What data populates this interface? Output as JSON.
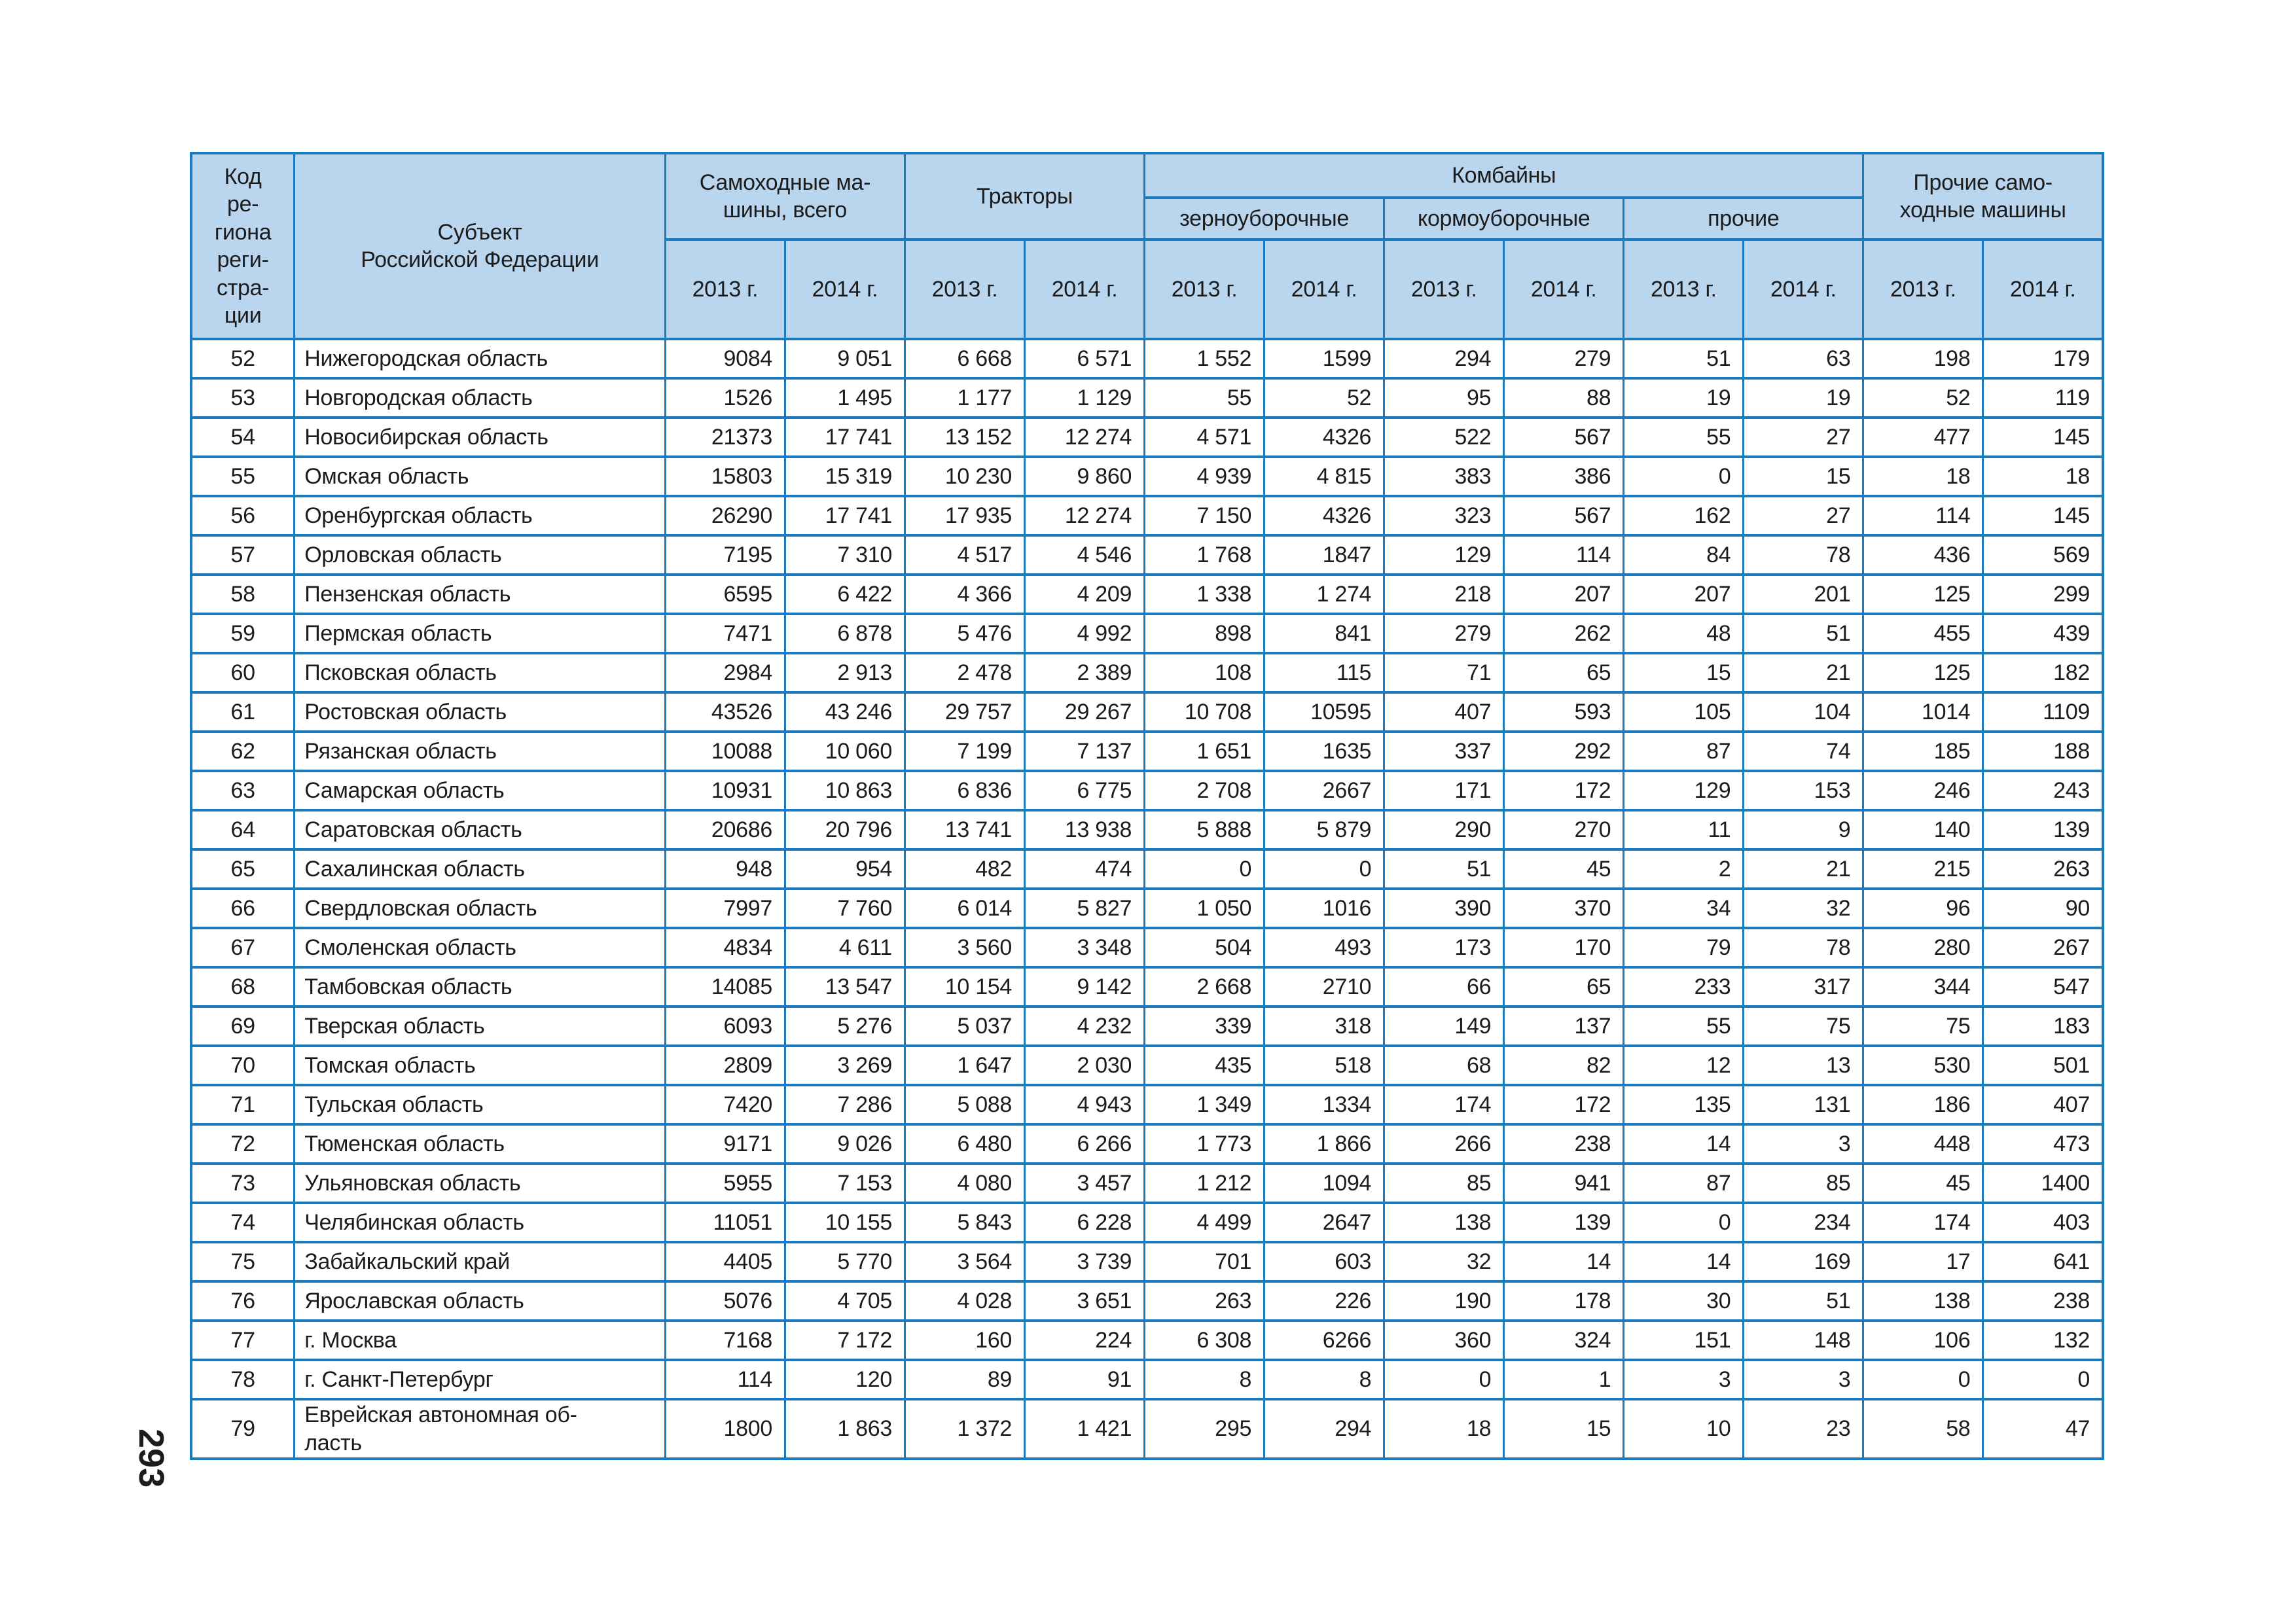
{
  "page": {
    "number": "293"
  },
  "colors": {
    "header_bg": "#b9d6ee",
    "border": "#1a7bbe",
    "text": "#1c1c1c"
  },
  "table": {
    "header": {
      "col_region_code": "Код\nре-\nгиона\nреги-\nстра-\nции",
      "col_subject": "Субъект\nРоссийской Федерации",
      "group_selfpropelled": "Самоходные ма-\nшины, всего",
      "group_tractors": "Тракторы",
      "group_combines": "Комбайны",
      "sub_grain": "зерноуборочные",
      "sub_forage": "кормоуборочные",
      "sub_other": "прочие",
      "group_other_selfpropelled": "Прочие само-\nходные машины",
      "year_2013": "2013 г.",
      "year_2014": "2014 г."
    },
    "rows": [
      {
        "code": "52",
        "name": "Нижегородская область",
        "values": [
          "9084",
          "9 051",
          "6 668",
          "6 571",
          "1 552",
          "1599",
          "294",
          "279",
          "51",
          "63",
          "198",
          "179"
        ]
      },
      {
        "code": "53",
        "name": "Новгородская область",
        "values": [
          "1526",
          "1 495",
          "1 177",
          "1 129",
          "55",
          "52",
          "95",
          "88",
          "19",
          "19",
          "52",
          "119"
        ]
      },
      {
        "code": "54",
        "name": "Новосибирская область",
        "values": [
          "21373",
          "17 741",
          "13 152",
          "12 274",
          "4 571",
          "4326",
          "522",
          "567",
          "55",
          "27",
          "477",
          "145"
        ]
      },
      {
        "code": "55",
        "name": "Омская область",
        "values": [
          "15803",
          "15 319",
          "10 230",
          "9 860",
          "4 939",
          "4 815",
          "383",
          "386",
          "0",
          "15",
          "18",
          "18"
        ]
      },
      {
        "code": "56",
        "name": "Оренбургская область",
        "values": [
          "26290",
          "17 741",
          "17 935",
          "12 274",
          "7 150",
          "4326",
          "323",
          "567",
          "162",
          "27",
          "114",
          "145"
        ]
      },
      {
        "code": "57",
        "name": "Орловская область",
        "values": [
          "7195",
          "7 310",
          "4 517",
          "4 546",
          "1 768",
          "1847",
          "129",
          "114",
          "84",
          "78",
          "436",
          "569"
        ]
      },
      {
        "code": "58",
        "name": "Пензенская область",
        "values": [
          "6595",
          "6 422",
          "4 366",
          "4 209",
          "1 338",
          "1 274",
          "218",
          "207",
          "207",
          "201",
          "125",
          "299"
        ]
      },
      {
        "code": "59",
        "name": "Пермская область",
        "values": [
          "7471",
          "6 878",
          "5 476",
          "4 992",
          "898",
          "841",
          "279",
          "262",
          "48",
          "51",
          "455",
          "439"
        ]
      },
      {
        "code": "60",
        "name": "Псковская область",
        "values": [
          "2984",
          "2 913",
          "2 478",
          "2 389",
          "108",
          "115",
          "71",
          "65",
          "15",
          "21",
          "125",
          "182"
        ]
      },
      {
        "code": "61",
        "name": "Ростовская область",
        "values": [
          "43526",
          "43 246",
          "29 757",
          "29 267",
          "10 708",
          "10595",
          "407",
          "593",
          "105",
          "104",
          "1014",
          "1109"
        ]
      },
      {
        "code": "62",
        "name": "Рязанская область",
        "values": [
          "10088",
          "10 060",
          "7 199",
          "7 137",
          "1 651",
          "1635",
          "337",
          "292",
          "87",
          "74",
          "185",
          "188"
        ]
      },
      {
        "code": "63",
        "name": "Самарская область",
        "values": [
          "10931",
          "10 863",
          "6 836",
          "6 775",
          "2 708",
          "2667",
          "171",
          "172",
          "129",
          "153",
          "246",
          "243"
        ]
      },
      {
        "code": "64",
        "name": "Саратовская область",
        "values": [
          "20686",
          "20 796",
          "13 741",
          "13 938",
          "5 888",
          "5 879",
          "290",
          "270",
          "11",
          "9",
          "140",
          "139"
        ]
      },
      {
        "code": "65",
        "name": "Сахалинская область",
        "values": [
          "948",
          "954",
          "482",
          "474",
          "0",
          "0",
          "51",
          "45",
          "2",
          "21",
          "215",
          "263"
        ]
      },
      {
        "code": "66",
        "name": "Свердловская область",
        "values": [
          "7997",
          "7 760",
          "6 014",
          "5 827",
          "1 050",
          "1016",
          "390",
          "370",
          "34",
          "32",
          "96",
          "90"
        ]
      },
      {
        "code": "67",
        "name": "Смоленская область",
        "values": [
          "4834",
          "4 611",
          "3 560",
          "3 348",
          "504",
          "493",
          "173",
          "170",
          "79",
          "78",
          "280",
          "267"
        ]
      },
      {
        "code": "68",
        "name": "Тамбовская область",
        "values": [
          "14085",
          "13 547",
          "10 154",
          "9 142",
          "2 668",
          "2710",
          "66",
          "65",
          "233",
          "317",
          "344",
          "547"
        ]
      },
      {
        "code": "69",
        "name": "Тверская область",
        "values": [
          "6093",
          "5 276",
          "5 037",
          "4 232",
          "339",
          "318",
          "149",
          "137",
          "55",
          "75",
          "75",
          "183"
        ]
      },
      {
        "code": "70",
        "name": "Томская область",
        "values": [
          "2809",
          "3 269",
          "1 647",
          "2 030",
          "435",
          "518",
          "68",
          "82",
          "12",
          "13",
          "530",
          "501"
        ]
      },
      {
        "code": "71",
        "name": "Тульская область",
        "values": [
          "7420",
          "7 286",
          "5 088",
          "4 943",
          "1 349",
          "1334",
          "174",
          "172",
          "135",
          "131",
          "186",
          "407"
        ]
      },
      {
        "code": "72",
        "name": "Тюменская область",
        "values": [
          "9171",
          "9 026",
          "6 480",
          "6 266",
          "1 773",
          "1 866",
          "266",
          "238",
          "14",
          "3",
          "448",
          "473"
        ]
      },
      {
        "code": "73",
        "name": "Ульяновская область",
        "values": [
          "5955",
          "7 153",
          "4 080",
          "3 457",
          "1 212",
          "1094",
          "85",
          "941",
          "87",
          "85",
          "45",
          "1400"
        ]
      },
      {
        "code": "74",
        "name": "Челябинская область",
        "values": [
          "11051",
          "10 155",
          "5 843",
          "6 228",
          "4 499",
          "2647",
          "138",
          "139",
          "0",
          "234",
          "174",
          "403"
        ]
      },
      {
        "code": "75",
        "name": "Забайкальский край",
        "values": [
          "4405",
          "5 770",
          "3 564",
          "3 739",
          "701",
          "603",
          "32",
          "14",
          "14",
          "169",
          "17",
          "641"
        ]
      },
      {
        "code": "76",
        "name": "Ярославская область",
        "values": [
          "5076",
          "4 705",
          "4 028",
          "3 651",
          "263",
          "226",
          "190",
          "178",
          "30",
          "51",
          "138",
          "238"
        ]
      },
      {
        "code": "77",
        "name": "г. Москва",
        "values": [
          "7168",
          "7 172",
          "160",
          "224",
          "6 308",
          "6266",
          "360",
          "324",
          "151",
          "148",
          "106",
          "132"
        ]
      },
      {
        "code": "78",
        "name": "г. Санкт-Петербург",
        "values": [
          "114",
          "120",
          "89",
          "91",
          "8",
          "8",
          "0",
          "1",
          "3",
          "3",
          "0",
          "0"
        ]
      },
      {
        "code": "79",
        "name": "Еврейская автономная об-\nласть",
        "values": [
          "1800",
          "1 863",
          "1 372",
          "1 421",
          "295",
          "294",
          "18",
          "15",
          "10",
          "23",
          "58",
          "47"
        ]
      }
    ]
  }
}
